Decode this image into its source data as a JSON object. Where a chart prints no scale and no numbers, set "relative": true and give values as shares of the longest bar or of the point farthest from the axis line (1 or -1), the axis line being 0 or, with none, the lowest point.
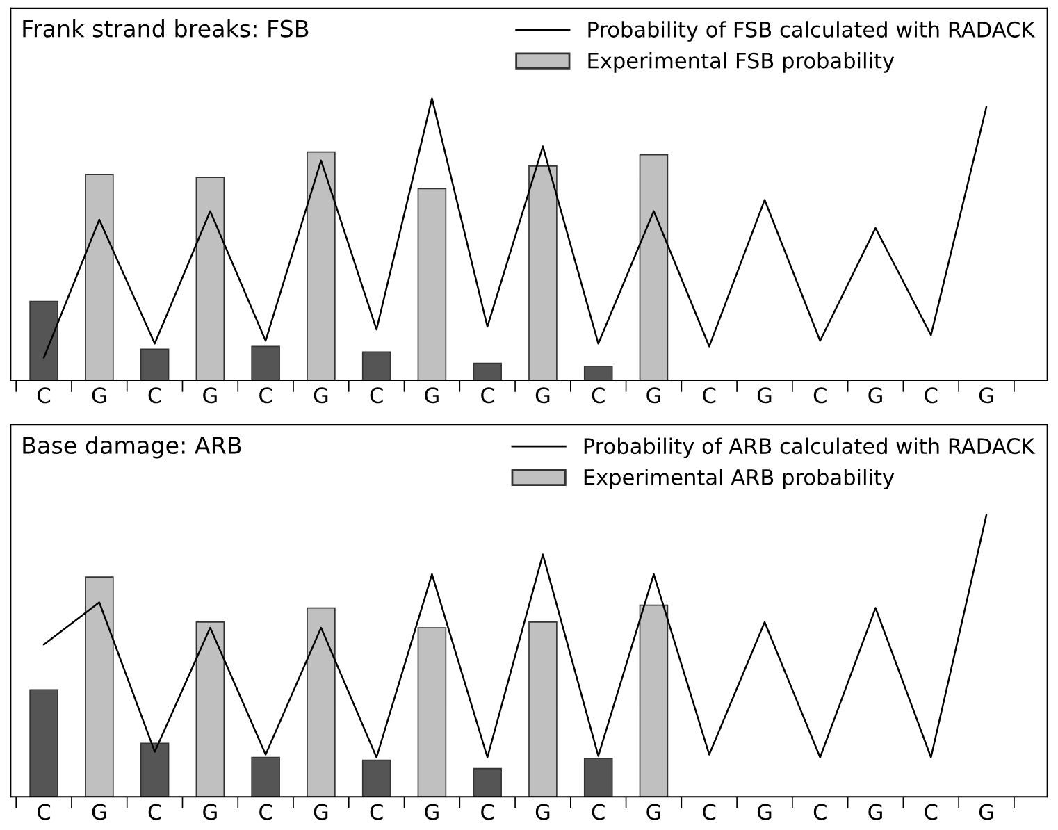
{
  "chart_data": [
    {
      "type": "bar",
      "title": "Frank strand breaks: FSB",
      "relative": true,
      "legend": "top right",
      "grid": false,
      "categories": [
        "C",
        "G",
        "C",
        "G",
        "C",
        "G",
        "C",
        "G",
        "C",
        "G",
        "C",
        "G",
        "C",
        "G",
        "C",
        "G",
        "C",
        "G"
      ],
      "series": [
        {
          "name": "Probability of FSB calculated with RADACK",
          "type": "line",
          "color": "#000000",
          "values": [
            0.08,
            0.57,
            0.13,
            0.6,
            0.14,
            0.78,
            0.18,
            1.0,
            0.19,
            0.83,
            0.13,
            0.6,
            0.12,
            0.64,
            0.14,
            0.54,
            0.16,
            0.97
          ]
        },
        {
          "name": "Experimental FSB probability",
          "color": "#c0c0c0",
          "values": [
            null,
            0.73,
            null,
            0.72,
            null,
            0.81,
            null,
            0.68,
            null,
            0.76,
            null,
            0.8,
            null,
            null,
            null,
            null,
            null,
            null
          ]
        },
        {
          "color": "#555555",
          "values": [
            0.28,
            null,
            0.11,
            null,
            0.12,
            null,
            0.1,
            null,
            0.06,
            null,
            0.05,
            null,
            null,
            null,
            null,
            null,
            null,
            null
          ]
        }
      ]
    },
    {
      "type": "bar",
      "title": "Base damage: ARB",
      "relative": true,
      "legend": "top right",
      "grid": false,
      "categories": [
        "C",
        "G",
        "C",
        "G",
        "C",
        "G",
        "C",
        "G",
        "C",
        "G",
        "C",
        "G",
        "C",
        "G",
        "C",
        "G",
        "C",
        "G"
      ],
      "series": [
        {
          "name": "Probability of ARB calculated with RADACK",
          "type": "line",
          "color": "#000000",
          "values": [
            0.54,
            0.69,
            0.16,
            0.6,
            0.15,
            0.6,
            0.14,
            0.79,
            0.14,
            0.86,
            0.145,
            0.79,
            0.15,
            0.62,
            0.14,
            0.67,
            0.14,
            1.0
          ]
        },
        {
          "name": "Experimental ARB probability",
          "color": "#c0c0c0",
          "values": [
            null,
            0.78,
            null,
            0.62,
            null,
            0.67,
            null,
            0.6,
            null,
            0.62,
            null,
            0.68,
            null,
            null,
            null,
            null,
            null,
            null
          ]
        },
        {
          "color": "#555555",
          "values": [
            0.38,
            null,
            0.19,
            null,
            0.14,
            null,
            0.13,
            null,
            0.1,
            null,
            0.136,
            null,
            null,
            null,
            null,
            null,
            null,
            null
          ]
        }
      ]
    }
  ]
}
